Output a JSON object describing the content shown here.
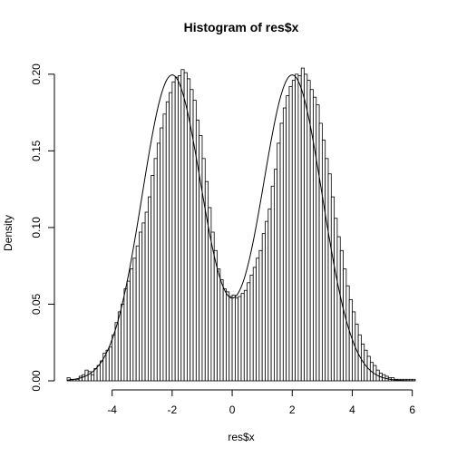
{
  "chart_data": {
    "type": "bar",
    "title": "Histogram of res$x",
    "xlabel": "res$x",
    "ylabel": "Density",
    "xlim": [
      -5.5,
      6.1
    ],
    "ylim": [
      0,
      0.207
    ],
    "x_ticks": [
      -4,
      -2,
      0,
      2,
      4,
      6
    ],
    "x_tick_labels": [
      "-4",
      "-2",
      "0",
      "2",
      "4",
      "6"
    ],
    "y_ticks": [
      0.0,
      0.05,
      0.1,
      0.15,
      0.2
    ],
    "y_tick_labels": [
      "0.00",
      "0.05",
      "0.10",
      "0.15",
      "0.20"
    ],
    "bin_width": 0.1,
    "bin_start": -5.5,
    "values": [
      0.002,
      0.001,
      0.001,
      0.001,
      0.003,
      0.004,
      0.007,
      0.006,
      0.004,
      0.008,
      0.01,
      0.013,
      0.018,
      0.02,
      0.022,
      0.03,
      0.038,
      0.045,
      0.05,
      0.06,
      0.065,
      0.073,
      0.08,
      0.088,
      0.097,
      0.103,
      0.11,
      0.12,
      0.134,
      0.145,
      0.155,
      0.165,
      0.174,
      0.182,
      0.188,
      0.195,
      0.198,
      0.199,
      0.203,
      0.201,
      0.197,
      0.19,
      0.183,
      0.17,
      0.16,
      0.145,
      0.13,
      0.113,
      0.097,
      0.085,
      0.073,
      0.066,
      0.06,
      0.058,
      0.055,
      0.056,
      0.054,
      0.055,
      0.057,
      0.059,
      0.064,
      0.069,
      0.074,
      0.08,
      0.085,
      0.096,
      0.104,
      0.112,
      0.127,
      0.138,
      0.155,
      0.168,
      0.178,
      0.186,
      0.192,
      0.196,
      0.2,
      0.199,
      0.204,
      0.2,
      0.196,
      0.19,
      0.185,
      0.18,
      0.168,
      0.157,
      0.145,
      0.135,
      0.12,
      0.106,
      0.094,
      0.085,
      0.073,
      0.062,
      0.053,
      0.045,
      0.037,
      0.03,
      0.024,
      0.02,
      0.016,
      0.012,
      0.01,
      0.007,
      0.005,
      0.004,
      0.003,
      0.002,
      0.002,
      0.001,
      0.001,
      0.001,
      0.001,
      0.001,
      0.001,
      0.001
    ],
    "curve": {
      "type": "line",
      "description_free": true,
      "components": [
        {
          "mean": -2.0,
          "sd": 1.0,
          "weight": 0.5
        },
        {
          "mean": 2.0,
          "sd": 1.0,
          "weight": 0.5
        }
      ]
    },
    "grid": false
  }
}
